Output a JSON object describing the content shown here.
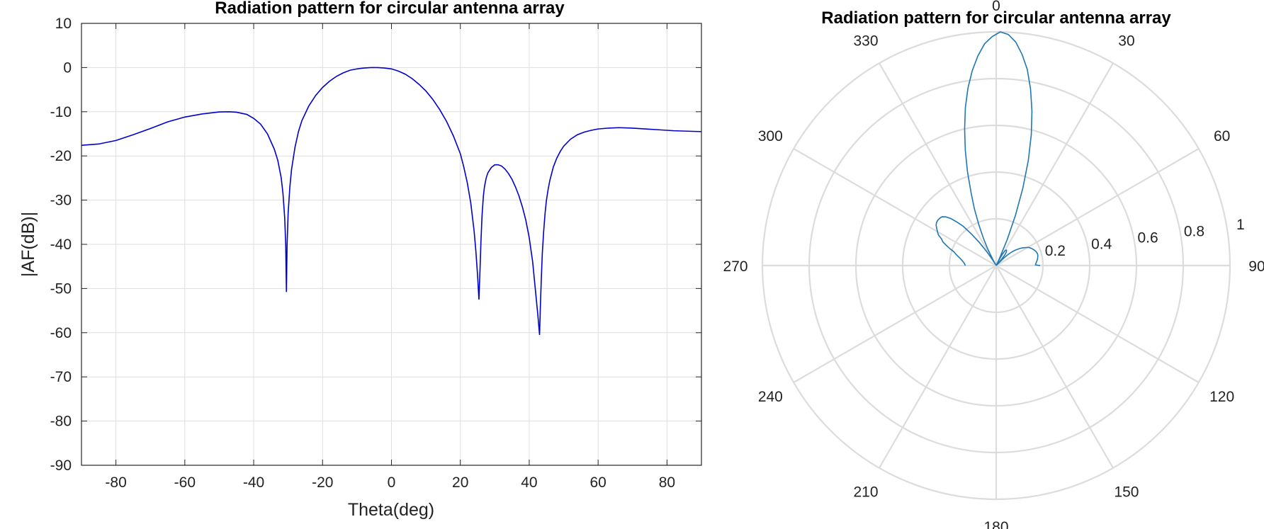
{
  "charts": {
    "cartesian": {
      "title": "Radiation pattern for circular antenna array",
      "xlabel": "Theta(deg)",
      "ylabel": "|AF(dB)|"
    },
    "polar": {
      "title": "Radiation pattern for circular antenna array"
    }
  },
  "chart_data": [
    {
      "type": "line",
      "title": "Radiation pattern for circular antenna array",
      "xlabel": "Theta(deg)",
      "ylabel": "|AF(dB)|",
      "xlim": [
        -90,
        90
      ],
      "ylim": [
        -90,
        10
      ],
      "xticks": [
        -80,
        -60,
        -40,
        -20,
        0,
        20,
        40,
        60,
        80
      ],
      "yticks": [
        10,
        0,
        -10,
        -20,
        -30,
        -40,
        -50,
        -60,
        -70,
        -80,
        -90
      ],
      "grid": true,
      "color": "#0000cc",
      "x": [
        -90,
        -85,
        -80,
        -75,
        -70,
        -65,
        -60,
        -55,
        -50,
        -47,
        -45,
        -42,
        -40,
        -38,
        -36,
        -34,
        -33,
        -32,
        -31.5,
        -31,
        -30.7,
        -30.5,
        -30.3,
        -30,
        -29.5,
        -29,
        -28,
        -27,
        -26,
        -24,
        -22,
        -20,
        -18,
        -16,
        -14,
        -12,
        -10,
        -8,
        -6,
        -4,
        -2,
        0,
        2,
        4,
        6,
        8,
        10,
        12,
        14,
        16,
        18,
        20,
        21,
        22,
        23,
        24,
        24.5,
        25,
        25.4,
        25.7,
        26,
        26.3,
        26.7,
        27,
        27.5,
        28,
        29,
        30,
        31,
        32,
        33,
        34,
        35,
        36,
        37,
        38,
        39,
        40,
        41,
        41.5,
        42,
        42.5,
        43,
        43.2,
        43.5,
        43.8,
        44.2,
        44.6,
        45,
        45.5,
        46,
        47,
        48,
        49,
        50,
        52,
        54,
        56,
        58,
        60,
        63,
        66,
        70,
        74,
        78,
        82,
        86,
        90
      ],
      "y": [
        -17.6,
        -17.3,
        -16.5,
        -15.2,
        -13.8,
        -12.3,
        -11.2,
        -10.5,
        -10.05,
        -10.0,
        -10.1,
        -10.6,
        -11.5,
        -12.8,
        -15.0,
        -18.5,
        -21.0,
        -25.0,
        -28.5,
        -34.0,
        -40.0,
        -50.8,
        -40.0,
        -33.0,
        -27.0,
        -23.0,
        -18.0,
        -14.5,
        -12.0,
        -8.7,
        -6.3,
        -4.5,
        -3.1,
        -2.0,
        -1.2,
        -0.6,
        -0.3,
        -0.1,
        0.0,
        0.0,
        -0.1,
        -0.3,
        -0.8,
        -1.5,
        -2.5,
        -3.8,
        -5.3,
        -7.2,
        -9.5,
        -12.2,
        -15.5,
        -19.5,
        -22.5,
        -26.0,
        -30.5,
        -37.0,
        -41.5,
        -47.0,
        -52.5,
        -46.0,
        -39.0,
        -33.5,
        -29.0,
        -27.0,
        -25.0,
        -23.8,
        -22.6,
        -22.0,
        -22.0,
        -22.3,
        -23.0,
        -24.0,
        -25.3,
        -27.0,
        -29.0,
        -31.5,
        -34.5,
        -38.5,
        -44.0,
        -48.0,
        -52.0,
        -56.0,
        -60.5,
        -55.0,
        -48.0,
        -42.0,
        -37.0,
        -33.0,
        -30.0,
        -27.5,
        -25.5,
        -22.5,
        -20.5,
        -19.0,
        -17.8,
        -16.2,
        -15.2,
        -14.6,
        -14.2,
        -13.9,
        -13.7,
        -13.6,
        -13.7,
        -13.9,
        -14.1,
        -14.3,
        -14.4,
        -14.5
      ]
    },
    {
      "type": "polar",
      "title": "Radiation pattern for circular antenna array",
      "theta_zero_location": "top",
      "theta_direction": "clockwise",
      "theta_ticks": [
        0,
        30,
        60,
        90,
        120,
        150,
        180,
        210,
        240,
        270,
        300,
        330
      ],
      "r_ticks": [
        0.2,
        0.4,
        0.6,
        0.8,
        1
      ],
      "rlim": [
        0,
        1
      ],
      "grid": true,
      "color": "#1f77b4",
      "theta": [
        -90,
        -88,
        -86,
        -84,
        -82,
        -80,
        -78,
        -76,
        -74,
        -72,
        -70,
        -68,
        -66,
        -64,
        -62,
        -60,
        -58,
        -56,
        -54,
        -52,
        -50,
        -48,
        -46,
        -44,
        -42,
        -40,
        -38,
        -36,
        -34,
        -32,
        -30.5,
        -29,
        -27,
        -25,
        -23,
        -21,
        -19,
        -17,
        -15,
        -13,
        -11,
        -9,
        -7,
        -5,
        -3,
        -1,
        1,
        3,
        5,
        7,
        9,
        11,
        13,
        15,
        17,
        19,
        21,
        23,
        25,
        25.8,
        27,
        29,
        31,
        33,
        35,
        37,
        39,
        41,
        43.3,
        45,
        47,
        49,
        51,
        53,
        55,
        57,
        59,
        61,
        63,
        65,
        67,
        69,
        71,
        73,
        75,
        77,
        79,
        81,
        83,
        85,
        87,
        89,
        90
      ],
      "r": [
        0.132,
        0.134,
        0.137,
        0.141,
        0.146,
        0.153,
        0.16,
        0.17,
        0.18,
        0.19,
        0.21,
        0.23,
        0.25,
        0.26,
        0.28,
        0.29,
        0.3,
        0.31,
        0.315,
        0.316,
        0.315,
        0.312,
        0.3,
        0.28,
        0.25,
        0.22,
        0.17,
        0.12,
        0.07,
        0.03,
        0.0,
        0.03,
        0.08,
        0.13,
        0.19,
        0.26,
        0.33,
        0.42,
        0.51,
        0.6,
        0.69,
        0.77,
        0.84,
        0.9,
        0.95,
        0.98,
        1.0,
        0.99,
        0.96,
        0.91,
        0.85,
        0.77,
        0.68,
        0.58,
        0.47,
        0.35,
        0.23,
        0.12,
        0.03,
        0.0,
        0.04,
        0.06,
        0.075,
        0.079,
        0.078,
        0.072,
        0.06,
        0.035,
        0.0,
        0.04,
        0.07,
        0.09,
        0.105,
        0.117,
        0.13,
        0.14,
        0.15,
        0.16,
        0.165,
        0.17,
        0.174,
        0.178,
        0.181,
        0.183,
        0.184,
        0.183,
        0.181,
        0.179,
        0.176,
        0.173,
        0.17,
        0.168,
        0.188
      ]
    }
  ]
}
